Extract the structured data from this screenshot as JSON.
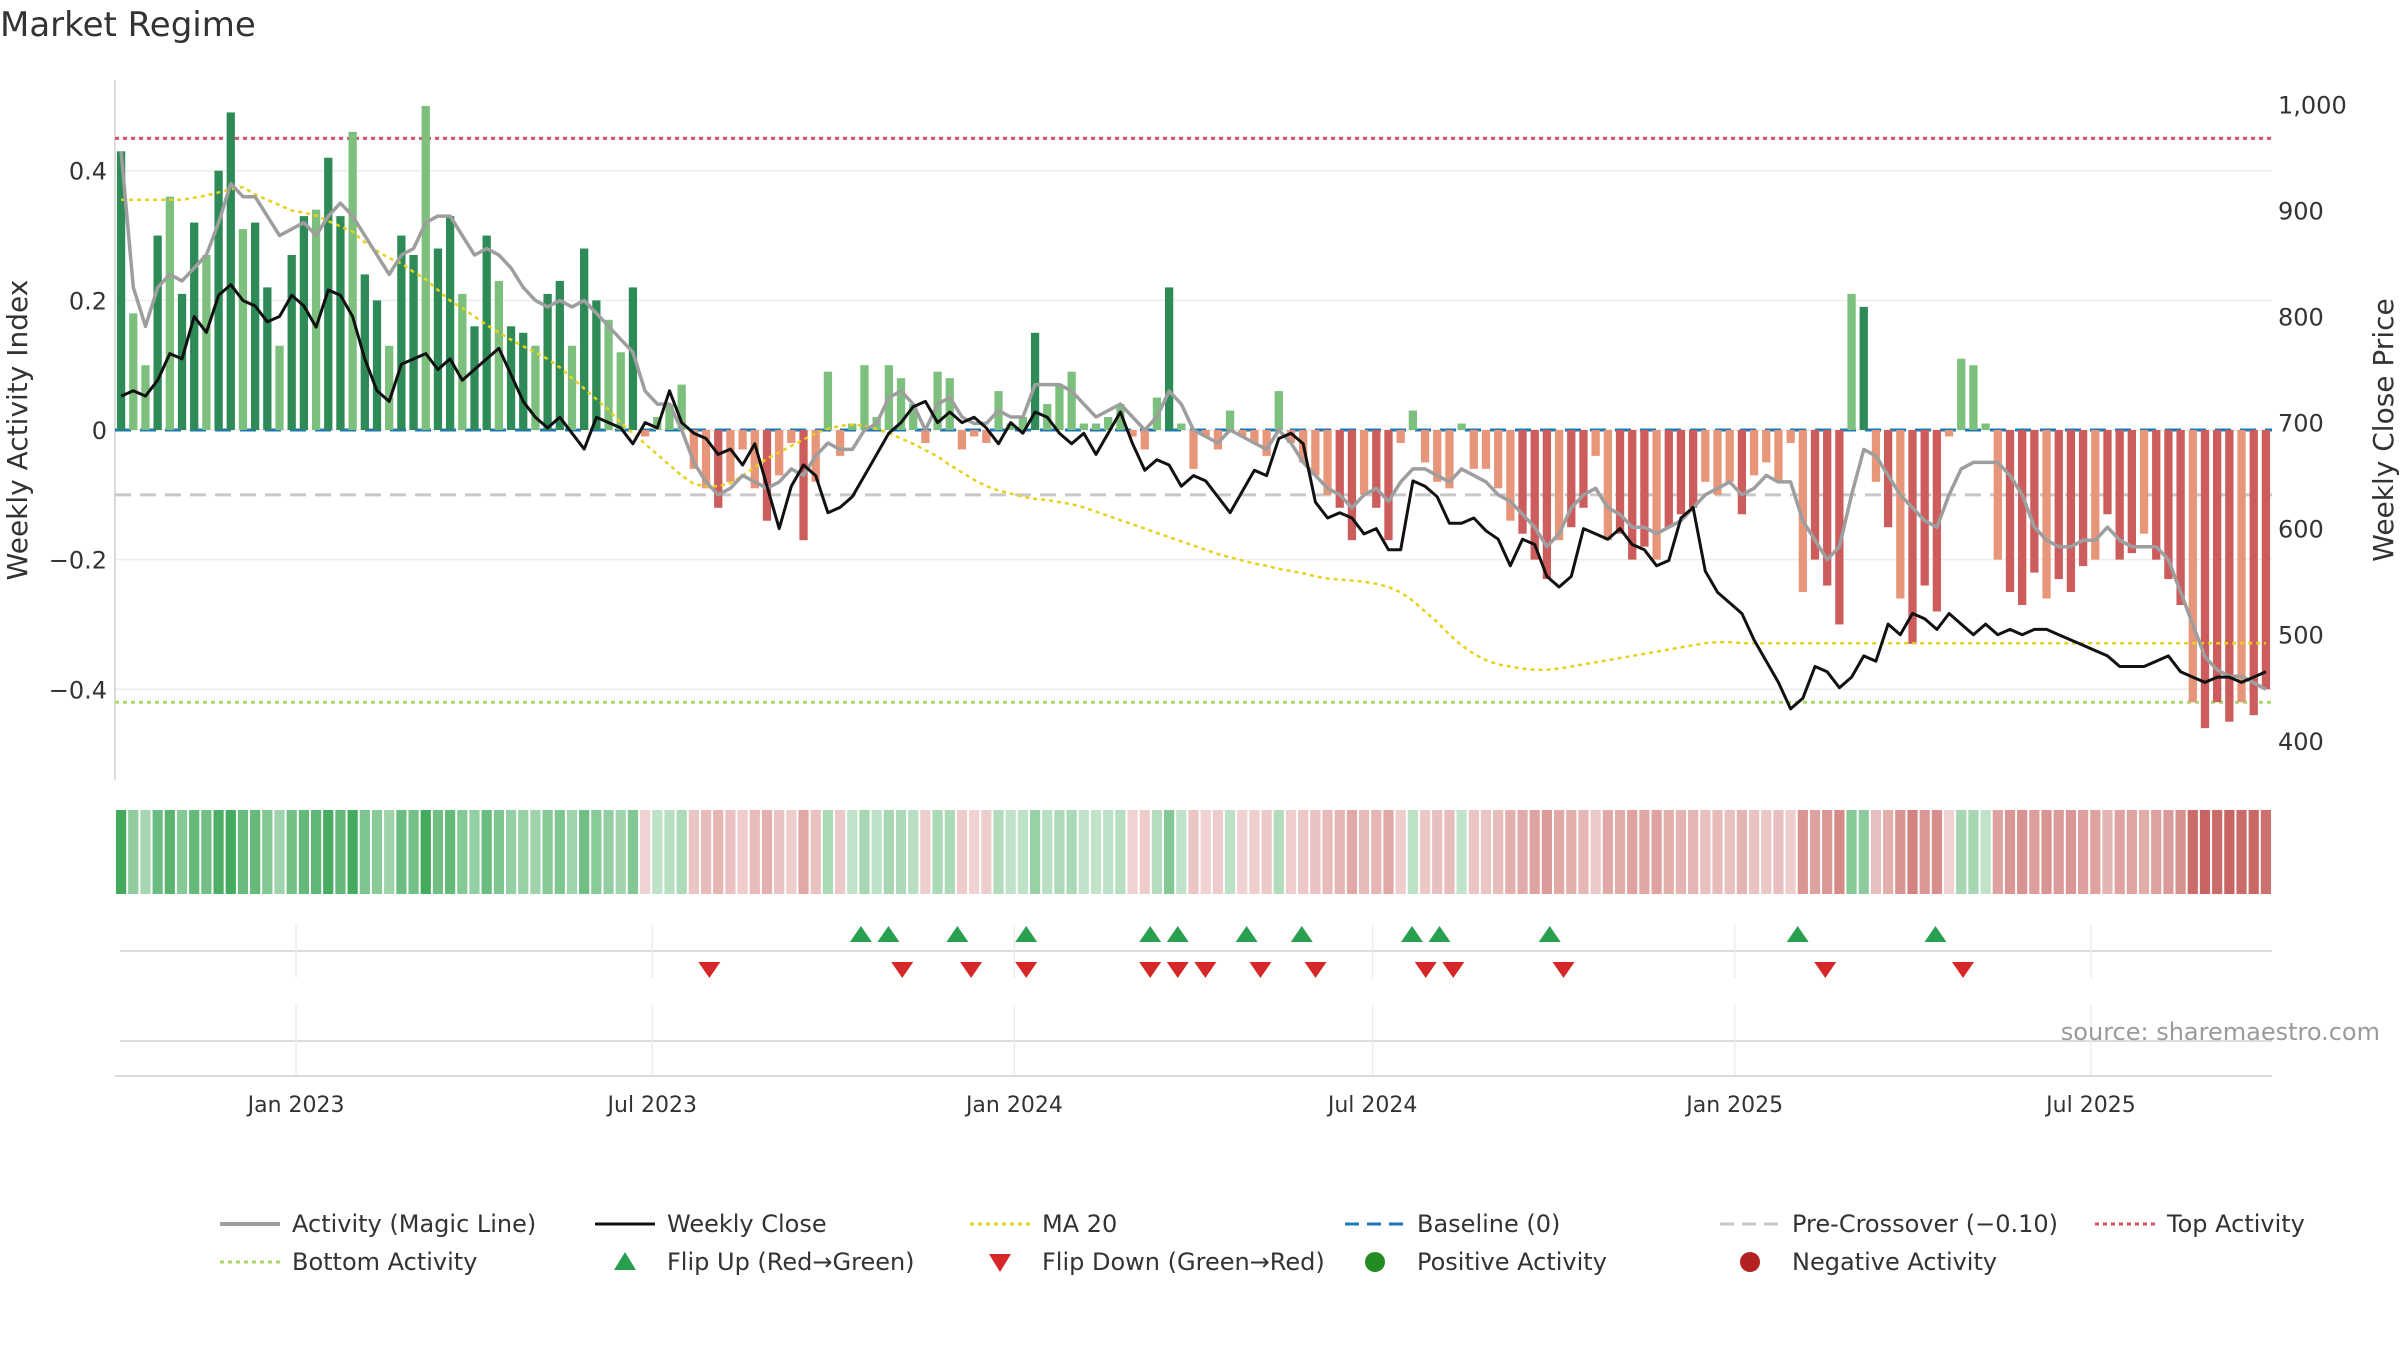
{
  "title": "Market Regime",
  "source_note": "source: sharemaestro.com",
  "colors": {
    "strong_green": "#2e8b57",
    "light_green": "#7dc07d",
    "strong_red": "#cd5c5c",
    "light_red": "#e8967a",
    "magic_line": "#9e9e9e",
    "weekly_close": "#111111",
    "ma20": "#e6d21c",
    "baseline": "#1f77b4",
    "pre_crossover": "#c8c8c8",
    "top_activity": "#dc5068",
    "bottom_activity": "#a6d96a",
    "flip_up": "#28a050",
    "flip_down": "#d62728",
    "positive_dot": "#228b22",
    "negative_dot": "#b22222"
  },
  "chart_data": {
    "type": "bar",
    "title": "Market Regime",
    "ylabel_left": "Weekly Activity Index",
    "ylabel_right": "Weekly Close Price",
    "x_start": "2022-10-01",
    "x_end": "2025-10-01",
    "x_ticks": [
      "Jan 2023",
      "Jul 2023",
      "Jan 2024",
      "Jul 2024",
      "Jan 2025",
      "Jul 2025"
    ],
    "x_tick_dates": [
      "2023-01-01",
      "2023-07-01",
      "2024-01-01",
      "2024-07-01",
      "2025-01-01",
      "2025-07-01"
    ],
    "ylim_left": [
      -0.54,
      0.54
    ],
    "yticks_left": [
      0.4,
      0.2,
      0,
      -0.2,
      -0.4
    ],
    "ytick_labels_left": [
      "0.4",
      "0.2",
      "0",
      "−0.2",
      "−0.4"
    ],
    "ylim_right": [
      363,
      1023
    ],
    "yticks_right": [
      1000,
      900,
      800,
      700,
      600,
      500,
      400
    ],
    "ytick_labels_right": [
      "1,000",
      "900",
      "800",
      "700",
      "600",
      "500",
      "400"
    ],
    "lines": {
      "top_activity": 0.45,
      "pre_crossover": -0.1,
      "bottom_activity": -0.42,
      "baseline": 0
    },
    "activity": [
      0.43,
      0.18,
      0.1,
      0.3,
      0.36,
      0.21,
      0.32,
      0.27,
      0.4,
      0.49,
      0.31,
      0.32,
      0.22,
      0.13,
      0.27,
      0.33,
      0.34,
      0.42,
      0.33,
      0.46,
      0.24,
      0.2,
      0.13,
      0.3,
      0.27,
      0.5,
      0.28,
      0.33,
      0.21,
      0.16,
      0.3,
      0.23,
      0.16,
      0.15,
      0.13,
      0.21,
      0.23,
      0.13,
      0.28,
      0.2,
      0.17,
      0.12,
      0.22,
      -0.01,
      0.02,
      0.04,
      0.07,
      -0.06,
      -0.09,
      -0.12,
      -0.08,
      -0.03,
      -0.09,
      -0.14,
      -0.07,
      -0.02,
      -0.17,
      -0.08,
      0.09,
      -0.04,
      0.01,
      0.1,
      0.02,
      0.1,
      0.08,
      0.04,
      -0.02,
      0.09,
      0.08,
      -0.03,
      -0.01,
      -0.02,
      0.06,
      0.01,
      0.02,
      0.15,
      0.04,
      0.07,
      0.09,
      0.01,
      0.01,
      0.02,
      0.04,
      -0.01,
      -0.03,
      0.05,
      0.22,
      0.01,
      -0.06,
      -0.01,
      -0.03,
      0.03,
      -0.01,
      -0.02,
      -0.04,
      0.06,
      -0.02,
      -0.05,
      -0.07,
      -0.1,
      -0.12,
      -0.17,
      -0.1,
      -0.12,
      -0.17,
      -0.02,
      0.03,
      -0.05,
      -0.08,
      -0.09,
      0.01,
      -0.06,
      -0.06,
      -0.09,
      -0.14,
      -0.16,
      -0.2,
      -0.23,
      -0.17,
      -0.15,
      -0.12,
      -0.04,
      -0.17,
      -0.16,
      -0.2,
      -0.18,
      -0.2,
      -0.15,
      -0.13,
      -0.12,
      -0.08,
      -0.1,
      -0.08,
      -0.13,
      -0.07,
      -0.05,
      -0.08,
      -0.02,
      -0.25,
      -0.2,
      -0.24,
      -0.3,
      0.21,
      0.19,
      -0.08,
      -0.15,
      -0.26,
      -0.33,
      -0.24,
      -0.28,
      -0.01,
      0.11,
      0.1,
      0.01,
      -0.2,
      -0.25,
      -0.27,
      -0.22,
      -0.26,
      -0.23,
      -0.25,
      -0.21,
      -0.2,
      -0.13,
      -0.2,
      -0.19,
      -0.16,
      -0.2,
      -0.23,
      -0.27,
      -0.42,
      -0.46,
      -0.42,
      -0.45,
      -0.42,
      -0.44,
      -0.4
    ],
    "magic_line": [
      0.43,
      0.22,
      0.16,
      0.22,
      0.24,
      0.23,
      0.25,
      0.27,
      0.32,
      0.38,
      0.36,
      0.36,
      0.33,
      0.3,
      0.31,
      0.32,
      0.3,
      0.33,
      0.35,
      0.33,
      0.3,
      0.27,
      0.24,
      0.27,
      0.28,
      0.32,
      0.33,
      0.33,
      0.3,
      0.27,
      0.28,
      0.27,
      0.25,
      0.22,
      0.2,
      0.19,
      0.2,
      0.19,
      0.2,
      0.18,
      0.16,
      0.14,
      0.12,
      0.06,
      0.04,
      0.04,
      0.0,
      -0.05,
      -0.08,
      -0.1,
      -0.09,
      -0.07,
      -0.08,
      -0.09,
      -0.08,
      -0.06,
      -0.07,
      -0.04,
      -0.02,
      -0.03,
      -0.03,
      0.0,
      0.01,
      0.05,
      0.06,
      0.04,
      0.0,
      0.04,
      0.05,
      0.02,
      0.01,
      0.01,
      0.03,
      0.02,
      0.02,
      0.07,
      0.07,
      0.07,
      0.06,
      0.04,
      0.02,
      0.03,
      0.04,
      0.02,
      0.0,
      0.02,
      0.06,
      0.04,
      0.0,
      -0.01,
      -0.02,
      0.0,
      -0.01,
      -0.02,
      -0.03,
      0.0,
      -0.02,
      -0.05,
      -0.07,
      -0.09,
      -0.1,
      -0.12,
      -0.1,
      -0.09,
      -0.11,
      -0.08,
      -0.06,
      -0.06,
      -0.07,
      -0.08,
      -0.06,
      -0.07,
      -0.08,
      -0.1,
      -0.11,
      -0.13,
      -0.15,
      -0.18,
      -0.16,
      -0.12,
      -0.1,
      -0.09,
      -0.12,
      -0.13,
      -0.15,
      -0.15,
      -0.16,
      -0.15,
      -0.14,
      -0.12,
      -0.1,
      -0.09,
      -0.08,
      -0.1,
      -0.09,
      -0.07,
      -0.08,
      -0.08,
      -0.14,
      -0.17,
      -0.2,
      -0.18,
      -0.1,
      -0.03,
      -0.04,
      -0.07,
      -0.1,
      -0.12,
      -0.14,
      -0.15,
      -0.1,
      -0.06,
      -0.05,
      -0.05,
      -0.05,
      -0.07,
      -0.1,
      -0.15,
      -0.17,
      -0.18,
      -0.18,
      -0.17,
      -0.17,
      -0.15,
      -0.17,
      -0.18,
      -0.18,
      -0.18,
      -0.2,
      -0.25,
      -0.3,
      -0.35,
      -0.37,
      -0.38,
      -0.38,
      -0.39,
      -0.4
    ],
    "weekly_close": [
      725,
      730,
      725,
      740,
      765,
      760,
      800,
      785,
      820,
      830,
      815,
      810,
      795,
      800,
      820,
      810,
      790,
      825,
      820,
      800,
      760,
      730,
      720,
      755,
      760,
      765,
      750,
      760,
      740,
      750,
      760,
      770,
      745,
      720,
      705,
      695,
      705,
      690,
      675,
      705,
      700,
      695,
      680,
      700,
      695,
      730,
      700,
      690,
      685,
      670,
      675,
      660,
      680,
      640,
      600,
      640,
      660,
      650,
      615,
      620,
      630,
      650,
      670,
      690,
      700,
      715,
      720,
      700,
      710,
      700,
      705,
      695,
      680,
      700,
      690,
      710,
      705,
      690,
      680,
      690,
      670,
      690,
      710,
      680,
      655,
      665,
      660,
      640,
      650,
      645,
      630,
      615,
      635,
      655,
      650,
      685,
      690,
      680,
      625,
      610,
      615,
      610,
      595,
      600,
      580,
      580,
      645,
      640,
      630,
      605,
      605,
      610,
      598,
      590,
      565,
      590,
      585,
      555,
      545,
      555,
      600,
      595,
      590,
      600,
      585,
      580,
      565,
      570,
      610,
      620,
      560,
      540,
      530,
      520,
      495,
      475,
      455,
      430,
      440,
      470,
      465,
      450,
      460,
      480,
      475,
      510,
      500,
      520,
      515,
      505,
      520,
      510,
      500,
      510,
      500,
      505,
      500,
      505,
      505,
      500,
      495,
      490,
      485,
      480,
      470,
      470,
      470,
      475,
      480,
      465,
      460,
      455,
      460,
      460,
      455,
      460,
      465
    ],
    "ma20": [
      910,
      910,
      910,
      910,
      910,
      910,
      912,
      914,
      917,
      920,
      922,
      915,
      910,
      905,
      900,
      898,
      895,
      890,
      885,
      880,
      870,
      862,
      855,
      850,
      842,
      835,
      825,
      815,
      808,
      800,
      792,
      785,
      778,
      772,
      766,
      760,
      752,
      742,
      732,
      722,
      712,
      700,
      690,
      680,
      670,
      660,
      650,
      642,
      640,
      640,
      643,
      650,
      658,
      666,
      672,
      678,
      684,
      690,
      694,
      697,
      698,
      697,
      694,
      690,
      685,
      680,
      674,
      668,
      660,
      653,
      646,
      640,
      636,
      633,
      630,
      628,
      627,
      625,
      623,
      620,
      616,
      612,
      608,
      604,
      600,
      596,
      592,
      588,
      584,
      580,
      576,
      573,
      570,
      567,
      565,
      562,
      560,
      558,
      555,
      553,
      552,
      551,
      550,
      548,
      545,
      540,
      532,
      522,
      512,
      500,
      490,
      482,
      476,
      472,
      470,
      468,
      467,
      467,
      468,
      470,
      472,
      474,
      476,
      478,
      480,
      482,
      484,
      486,
      488,
      490,
      492,
      493,
      493,
      492,
      492,
      492,
      492,
      492,
      492,
      492,
      492,
      492,
      492,
      492,
      492,
      492,
      492,
      492,
      492,
      492,
      492,
      492,
      492,
      492,
      492,
      492,
      492,
      492,
      492,
      492,
      492,
      492,
      492,
      492,
      492,
      492,
      492,
      492,
      492,
      492,
      492,
      492,
      492,
      492,
      492,
      492,
      492
    ],
    "strip_weeks": [
      1,
      2,
      3,
      4,
      5,
      6,
      7,
      8,
      9,
      10,
      11,
      12,
      13,
      14,
      15,
      16,
      17,
      18,
      19,
      20,
      21,
      22,
      23,
      24,
      25,
      26,
      27,
      28,
      29,
      30,
      31,
      32,
      33,
      34,
      35,
      36,
      37,
      38,
      39,
      40,
      41,
      42,
      43,
      44,
      45,
      46,
      47,
      48,
      49,
      50,
      51,
      52,
      53,
      54,
      55,
      56,
      57,
      58,
      59,
      60,
      61,
      62,
      63,
      64,
      65,
      66,
      67,
      68,
      69,
      70,
      71,
      72,
      73,
      74,
      75,
      76,
      77,
      78
    ],
    "flips_up": [
      "2023-10-15",
      "2023-10-29",
      "2023-12-03",
      "2024-01-07",
      "2024-03-10",
      "2024-03-24",
      "2024-04-28",
      "2024-05-26",
      "2024-07-21",
      "2024-08-04",
      "2024-09-29",
      "2025-02-02",
      "2025-04-13"
    ],
    "flips_down": [
      "2023-07-30",
      "2023-11-05",
      "2023-12-10",
      "2024-01-07",
      "2024-03-10",
      "2024-03-24",
      "2024-04-07",
      "2024-05-05",
      "2024-06-02",
      "2024-07-28",
      "2024-08-11",
      "2024-10-06",
      "2025-02-16",
      "2025-04-27"
    ],
    "legend": [
      {
        "label": "Activity (Magic Line)",
        "kind": "line",
        "color": "#9e9e9e",
        "dash": ""
      },
      {
        "label": "Weekly Close",
        "kind": "line",
        "color": "#111111",
        "dash": ""
      },
      {
        "label": "MA 20",
        "kind": "line",
        "color": "#e6d21c",
        "dash": "4,4"
      },
      {
        "label": "Baseline (0)",
        "kind": "line",
        "color": "#1f77b4",
        "dash": "14,8"
      },
      {
        "label": "Pre-Crossover (−0.10)",
        "kind": "line",
        "color": "#c8c8c8",
        "dash": "14,8"
      },
      {
        "label": "Top Activity",
        "kind": "line",
        "color": "#dc5068",
        "dash": "4,4"
      },
      {
        "label": "Bottom Activity",
        "kind": "line",
        "color": "#a6d96a",
        "dash": "4,4"
      },
      {
        "label": "Flip Up (Red→Green)",
        "kind": "tri-up",
        "color": "#28a050",
        "dash": ""
      },
      {
        "label": "Flip Down (Green→Red)",
        "kind": "tri-down",
        "color": "#d62728",
        "dash": ""
      },
      {
        "label": "Positive Activity",
        "kind": "dot",
        "color": "#228b22",
        "dash": ""
      },
      {
        "label": "Negative Activity",
        "kind": "dot",
        "color": "#b22222",
        "dash": ""
      }
    ]
  }
}
